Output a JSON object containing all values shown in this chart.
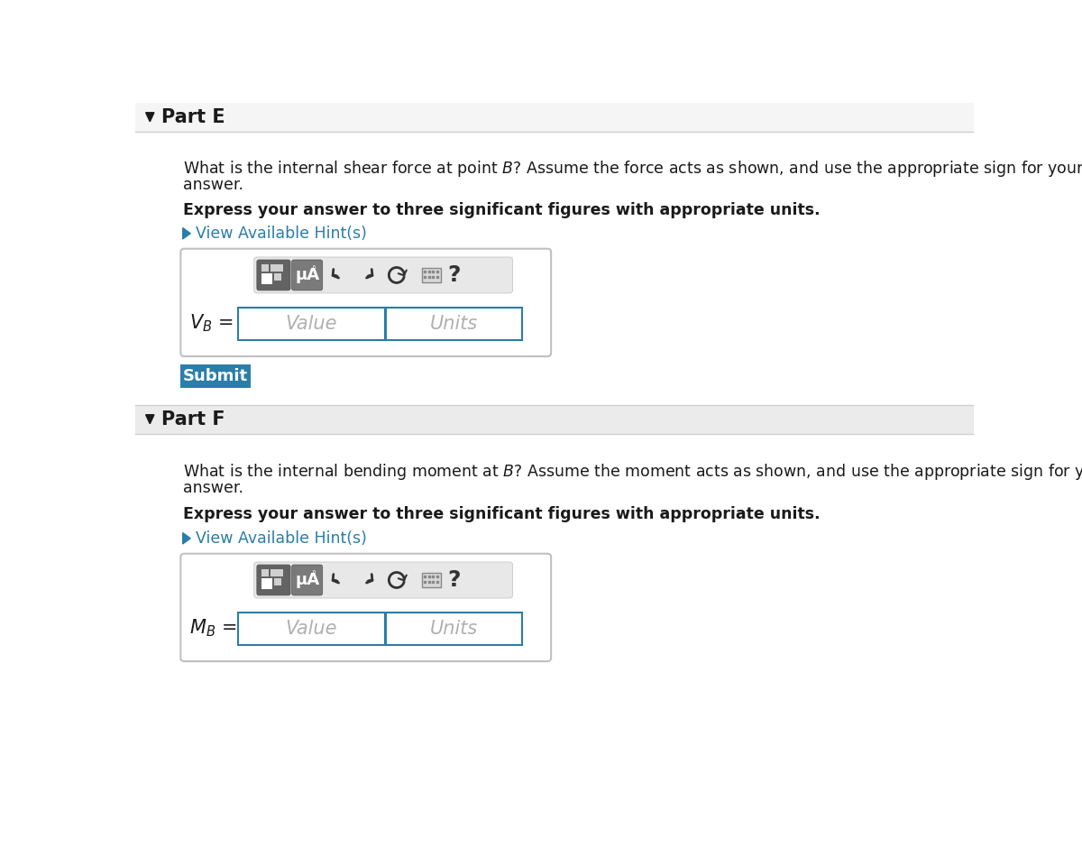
{
  "white": "#ffffff",
  "light_gray_bg": "#f2f2f2",
  "medium_gray": "#e8e8e8",
  "part_e_title": "Part E",
  "part_f_title": "Part F",
  "bold_text": "Express your answer to three significant figures with appropriate units.",
  "hint_text": "View Available Hint(s)",
  "vb_label": "$V_B$ =",
  "mb_label": "$M_B$ =",
  "value_placeholder": "Value",
  "units_placeholder": "Units",
  "submit_text": "Submit",
  "submit_bg": "#2a7ea8",
  "submit_fg": "#ffffff",
  "hint_color": "#2a7ea8",
  "dark_text": "#1a1a1a",
  "divider_color": "#d0d0d0",
  "input_border": "#2a7ea8",
  "toolbar_inner_bg": "#e8e8e8",
  "btn1_bg": "#636363",
  "btn2_bg": "#7a7a7a",
  "icon_color": "#333333",
  "part_e_q_line1": "What is the internal shear force at point $B$? Assume the force acts as shown, and use the appropriate sign for your",
  "part_e_q_line2": "answer.",
  "part_f_q_line1": "What is the internal bending moment at $B$? Assume the moment acts as shown, and use the appropriate sign for your",
  "part_f_q_line2": "answer.",
  "part_e_header_bg": "#f5f5f5",
  "part_f_header_bg": "#ebebeb",
  "box_border": "#c0c0c0",
  "placeholder_color": "#b0b0b0"
}
